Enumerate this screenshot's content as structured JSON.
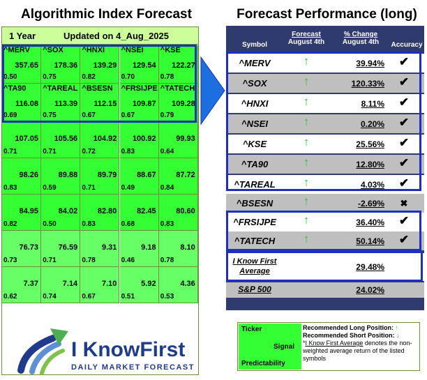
{
  "left_title": "Algorithmic Index Forecast",
  "right_title": "Forecast Performance (long)",
  "grid": {
    "period": "1 Year",
    "updated": "Updated on 4_Aug_2025",
    "rows": [
      [
        {
          "sym": "^MERV",
          "val": "357.65",
          "pred": "0.50"
        },
        {
          "sym": "^SOX",
          "val": "178.36",
          "pred": "0.75"
        },
        {
          "sym": "^HNXI",
          "val": "139.29",
          "pred": "0.82"
        },
        {
          "sym": "^NSEI",
          "val": "129.54",
          "pred": "0.70"
        },
        {
          "sym": "^KSE",
          "val": "122.27",
          "pred": "0.78"
        }
      ],
      [
        {
          "sym": "^TA90",
          "val": "116.08",
          "pred": "0.69"
        },
        {
          "sym": "^TAREAL",
          "val": "113.39",
          "pred": "0.75"
        },
        {
          "sym": "^BSESN",
          "val": "112.15",
          "pred": "0.67"
        },
        {
          "sym": "^FRSIJPE",
          "val": "109.87",
          "pred": "0.67"
        },
        {
          "sym": "^TATECH",
          "val": "109.28",
          "pred": "0.79"
        }
      ],
      [
        {
          "sym": "",
          "val": "107.05",
          "pred": "0.71"
        },
        {
          "sym": "",
          "val": "105.56",
          "pred": "0.71"
        },
        {
          "sym": "",
          "val": "104.92",
          "pred": "0.72"
        },
        {
          "sym": "",
          "val": "100.92",
          "pred": "0.83"
        },
        {
          "sym": "",
          "val": "99.93",
          "pred": "0.64"
        }
      ],
      [
        {
          "sym": "",
          "val": "98.26",
          "pred": "0.83"
        },
        {
          "sym": "",
          "val": "89.88",
          "pred": "0.59"
        },
        {
          "sym": "",
          "val": "89.79",
          "pred": "0.71"
        },
        {
          "sym": "",
          "val": "88.67",
          "pred": "0.49"
        },
        {
          "sym": "",
          "val": "87.72",
          "pred": "0.84"
        }
      ],
      [
        {
          "sym": "",
          "val": "84.95",
          "pred": "0.82"
        },
        {
          "sym": "",
          "val": "84.02",
          "pred": "0.50"
        },
        {
          "sym": "",
          "val": "82.80",
          "pred": "0.83"
        },
        {
          "sym": "",
          "val": "82.45",
          "pred": "0.68"
        },
        {
          "sym": "",
          "val": "80.60",
          "pred": "0.83"
        }
      ],
      [
        {
          "sym": "",
          "val": "76.73",
          "pred": "0.73"
        },
        {
          "sym": "",
          "val": "76.59",
          "pred": "0.71"
        },
        {
          "sym": "",
          "val": "9.31",
          "pred": "0.78"
        },
        {
          "sym": "",
          "val": "9.18",
          "pred": "0.46"
        },
        {
          "sym": "",
          "val": "8.10",
          "pred": "0.78"
        }
      ],
      [
        {
          "sym": "",
          "val": "7.37",
          "pred": "0.62"
        },
        {
          "sym": "",
          "val": "7.14",
          "pred": "0.74"
        },
        {
          "sym": "",
          "val": "7.10",
          "pred": "0.67"
        },
        {
          "sym": "",
          "val": "5.92",
          "pred": "0.51"
        },
        {
          "sym": "",
          "val": "4.36",
          "pred": "0.53"
        }
      ]
    ]
  },
  "perf": {
    "headers": {
      "symbol": "Symbol",
      "forecast_top": "Forecast",
      "forecast_bottom": "August 4th",
      "change_top": "% Change",
      "change_bottom": "August 4th",
      "accuracy": "Accuracy"
    },
    "rows": [
      {
        "sym": "^MERV",
        "arrow": "↑",
        "chg": "39.94%",
        "acc": "✔"
      },
      {
        "sym": "^SOX",
        "arrow": "↑",
        "chg": "120.33%",
        "acc": "✔"
      },
      {
        "sym": "^HNXI",
        "arrow": "↑",
        "chg": "8.11%",
        "acc": "✔"
      },
      {
        "sym": "^NSEI",
        "arrow": "↑",
        "chg": "0.20%",
        "acc": "✔"
      },
      {
        "sym": "^KSE",
        "arrow": "↑",
        "chg": "25.56%",
        "acc": "✔"
      },
      {
        "sym": "^TA90",
        "arrow": "↑",
        "chg": "12.80%",
        "acc": "✔"
      },
      {
        "sym": "^TAREAL",
        "arrow": "↑",
        "chg": "4.03%",
        "acc": "✔"
      },
      {
        "sym": "^BSESN",
        "arrow": "↑",
        "chg": "-2.69%",
        "acc": "✖"
      },
      {
        "sym": "^FRSIJPE",
        "arrow": "↑",
        "chg": "36.40%",
        "acc": "✔"
      },
      {
        "sym": "^TATECH",
        "arrow": "↑",
        "chg": "50.14%",
        "acc": "✔"
      }
    ],
    "average_label_line1": "I Know First",
    "average_label_line2": "Average",
    "average_value": "29.48%",
    "sp_label": "S&P 500",
    "sp_value": "24.02%"
  },
  "logo": {
    "line1": "I KnowFirst",
    "line2": "DAILY MARKET FORECAST"
  },
  "legend": {
    "ticker": "Ticker",
    "signal": "Signal",
    "predictability": "Predictability",
    "long_label": "Recommended Long Position:",
    "short_label": "Recommended Short Position:",
    "long_arrow": "↑",
    "short_arrow": "↓",
    "note_marker": "*",
    "note_link": "I Know First Average",
    "note_rest": " denotes the non-weighted average return of the listed symbols"
  },
  "colors": {
    "grid_green": "#33ff33",
    "grid_light_green": "#66ff66",
    "header_green": "#ccff99",
    "highlight_blue": "#1c2fbf",
    "table_navy": "#2f3a6e",
    "up_arrow": "#2fbf3a",
    "down_arrow": "#e03030"
  }
}
